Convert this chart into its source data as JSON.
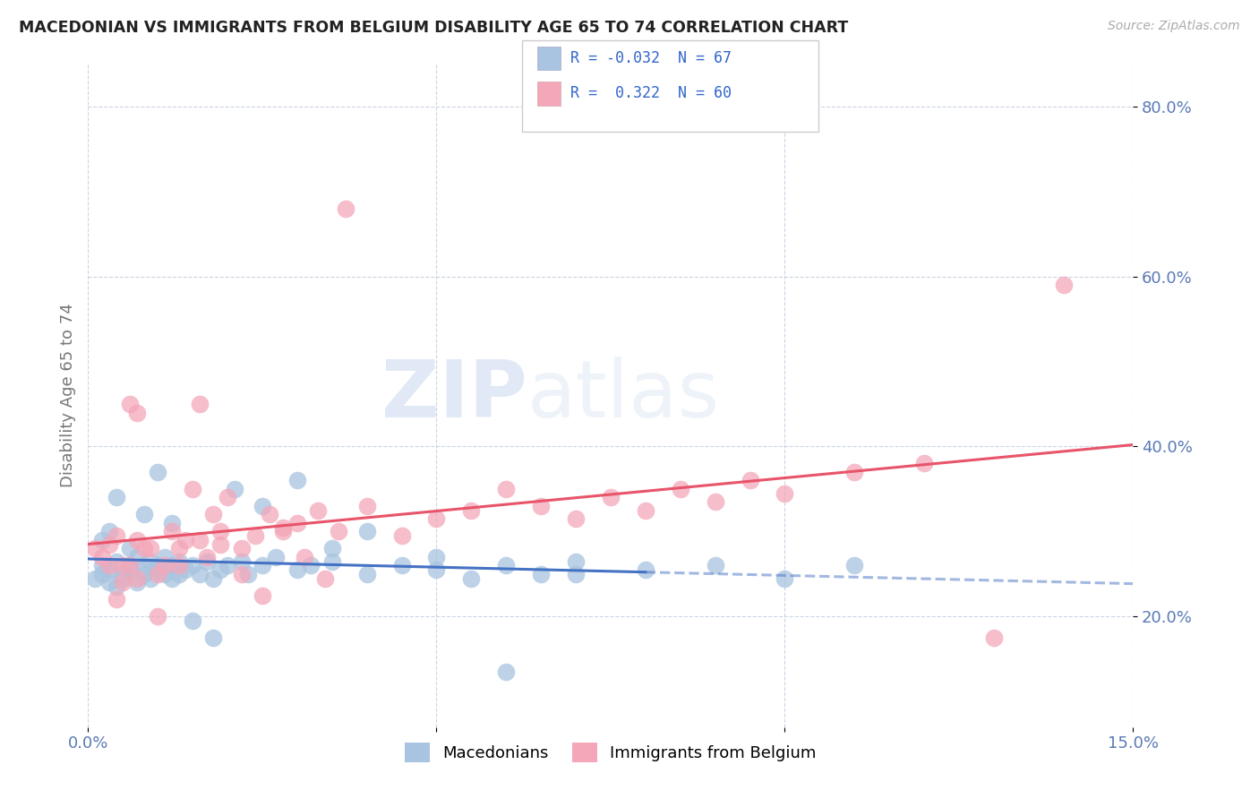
{
  "title": "MACEDONIAN VS IMMIGRANTS FROM BELGIUM DISABILITY AGE 65 TO 74 CORRELATION CHART",
  "source": "Source: ZipAtlas.com",
  "ylabel": "Disability Age 65 to 74",
  "r1": -0.032,
  "n1": 67,
  "r2": 0.322,
  "n2": 60,
  "xlim": [
    0.0,
    0.15
  ],
  "ylim": [
    0.07,
    0.85
  ],
  "xticks": [
    0.0,
    0.05,
    0.1,
    0.15
  ],
  "xtick_labels": [
    "0.0%",
    "",
    "",
    "15.0%"
  ],
  "ytick_labels": [
    "20.0%",
    "40.0%",
    "60.0%",
    "80.0%"
  ],
  "yticks": [
    0.2,
    0.4,
    0.6,
    0.8
  ],
  "color1": "#a8c4e0",
  "color2": "#f4a7b9",
  "line1_color": "#4472c4",
  "line2_color": "#e8546a",
  "legend1_label": "Macedonians",
  "legend2_label": "Immigrants from Belgium",
  "watermark_zip": "ZIP",
  "watermark_atlas": "atlas",
  "background_color": "#ffffff",
  "macedonian_x": [
    0.001,
    0.002,
    0.002,
    0.003,
    0.003,
    0.004,
    0.004,
    0.005,
    0.005,
    0.006,
    0.006,
    0.007,
    0.007,
    0.008,
    0.008,
    0.009,
    0.009,
    0.01,
    0.01,
    0.011,
    0.011,
    0.012,
    0.012,
    0.013,
    0.013,
    0.014,
    0.015,
    0.016,
    0.017,
    0.018,
    0.019,
    0.02,
    0.022,
    0.023,
    0.025,
    0.027,
    0.03,
    0.032,
    0.035,
    0.04,
    0.045,
    0.05,
    0.055,
    0.06,
    0.065,
    0.07,
    0.08,
    0.09,
    0.1,
    0.11,
    0.002,
    0.003,
    0.004,
    0.006,
    0.008,
    0.01,
    0.012,
    0.015,
    0.018,
    0.021,
    0.025,
    0.03,
    0.035,
    0.04,
    0.05,
    0.06,
    0.07
  ],
  "macedonian_y": [
    0.245,
    0.25,
    0.26,
    0.24,
    0.255,
    0.235,
    0.265,
    0.25,
    0.245,
    0.26,
    0.255,
    0.24,
    0.27,
    0.26,
    0.25,
    0.265,
    0.245,
    0.255,
    0.26,
    0.25,
    0.27,
    0.245,
    0.26,
    0.25,
    0.265,
    0.255,
    0.26,
    0.25,
    0.265,
    0.245,
    0.255,
    0.26,
    0.265,
    0.25,
    0.26,
    0.27,
    0.255,
    0.26,
    0.265,
    0.25,
    0.26,
    0.255,
    0.245,
    0.26,
    0.25,
    0.265,
    0.255,
    0.26,
    0.245,
    0.26,
    0.29,
    0.3,
    0.34,
    0.28,
    0.32,
    0.37,
    0.31,
    0.195,
    0.175,
    0.35,
    0.33,
    0.36,
    0.28,
    0.3,
    0.27,
    0.135,
    0.25
  ],
  "belgium_x": [
    0.001,
    0.002,
    0.003,
    0.003,
    0.004,
    0.005,
    0.005,
    0.006,
    0.006,
    0.007,
    0.007,
    0.008,
    0.009,
    0.01,
    0.011,
    0.012,
    0.013,
    0.014,
    0.015,
    0.016,
    0.017,
    0.018,
    0.019,
    0.02,
    0.022,
    0.024,
    0.026,
    0.028,
    0.03,
    0.033,
    0.036,
    0.04,
    0.045,
    0.05,
    0.055,
    0.06,
    0.065,
    0.07,
    0.075,
    0.08,
    0.085,
    0.09,
    0.095,
    0.1,
    0.11,
    0.12,
    0.13,
    0.14,
    0.004,
    0.007,
    0.01,
    0.013,
    0.016,
    0.019,
    0.022,
    0.025,
    0.028,
    0.031,
    0.034,
    0.037
  ],
  "belgium_y": [
    0.28,
    0.27,
    0.26,
    0.285,
    0.295,
    0.24,
    0.26,
    0.45,
    0.26,
    0.44,
    0.29,
    0.28,
    0.28,
    0.25,
    0.26,
    0.3,
    0.28,
    0.29,
    0.35,
    0.29,
    0.27,
    0.32,
    0.3,
    0.34,
    0.28,
    0.295,
    0.32,
    0.3,
    0.31,
    0.325,
    0.3,
    0.33,
    0.295,
    0.315,
    0.325,
    0.35,
    0.33,
    0.315,
    0.34,
    0.325,
    0.35,
    0.335,
    0.36,
    0.345,
    0.37,
    0.38,
    0.175,
    0.59,
    0.22,
    0.245,
    0.2,
    0.26,
    0.45,
    0.285,
    0.25,
    0.225,
    0.305,
    0.27,
    0.245,
    0.68
  ]
}
